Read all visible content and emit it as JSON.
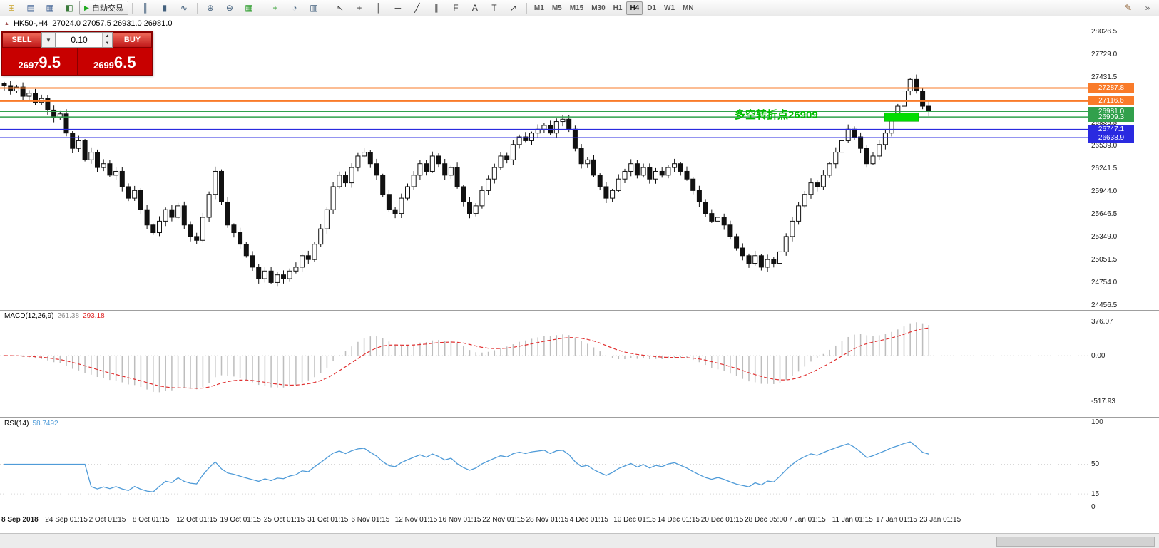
{
  "toolbar": {
    "autotrading_label": "自动交易",
    "groups": [
      {
        "name": "standard",
        "items": [
          {
            "name": "new-order-icon",
            "glyph": "⊞",
            "color": "#c9a227"
          },
          {
            "name": "market-watch-icon",
            "glyph": "▤",
            "color": "#4a6a9a"
          },
          {
            "name": "data-window-icon",
            "glyph": "▦",
            "color": "#4a6a9a"
          },
          {
            "name": "navigator-icon",
            "glyph": "◧",
            "color": "#3a7a3a"
          }
        ]
      },
      {
        "name": "chart-type",
        "items": [
          {
            "name": "bar-chart-icon",
            "glyph": "║",
            "color": "#44617e"
          },
          {
            "name": "candlestick-chart-icon",
            "glyph": "▮",
            "color": "#44617e"
          },
          {
            "name": "line-chart-icon",
            "glyph": "∿",
            "color": "#44617e"
          }
        ]
      },
      {
        "name": "zoom",
        "items": [
          {
            "name": "zoom-in-icon",
            "glyph": "⊕",
            "color": "#44617e"
          },
          {
            "name": "zoom-out-icon",
            "glyph": "⊖",
            "color": "#44617e"
          },
          {
            "name": "tile-windows-icon",
            "glyph": "▦",
            "color": "#2f9e2f"
          }
        ]
      },
      {
        "name": "chart-tools",
        "items": [
          {
            "name": "indicators-icon",
            "glyph": "+",
            "color": "#2f9e2f"
          },
          {
            "name": "periods-icon",
            "glyph": "◔",
            "color": "#44617e"
          },
          {
            "name": "templates-icon",
            "glyph": "▥",
            "color": "#44617e"
          }
        ]
      },
      {
        "name": "draw-tools",
        "items": [
          {
            "name": "cursor-icon",
            "glyph": "↖",
            "color": "#333333"
          },
          {
            "name": "crosshair-icon",
            "glyph": "+",
            "color": "#333333"
          },
          {
            "name": "vertical-line-icon",
            "glyph": "│",
            "color": "#333333"
          },
          {
            "name": "horizontal-line-icon",
            "glyph": "─",
            "color": "#333333"
          },
          {
            "name": "trendline-icon",
            "glyph": "╱",
            "color": "#333333"
          },
          {
            "name": "channel-icon",
            "glyph": "∥",
            "color": "#333333"
          },
          {
            "name": "fibonacci-icon",
            "glyph": "F",
            "color": "#333333"
          },
          {
            "name": "text-icon",
            "glyph": "A",
            "color": "#333333"
          },
          {
            "name": "label-icon",
            "glyph": "T",
            "color": "#333333"
          },
          {
            "name": "arrows-icon",
            "glyph": "↗",
            "color": "#333333"
          }
        ]
      }
    ],
    "timeframes": [
      "M1",
      "M5",
      "M15",
      "M30",
      "H1",
      "H4",
      "D1",
      "W1",
      "MN"
    ],
    "active_timeframe": "H4",
    "right_items": [
      {
        "name": "styles-icon",
        "glyph": "✎",
        "color": "#8a5a2a"
      },
      {
        "name": "toolbar-overflow-icon",
        "glyph": "»",
        "color": "#666666"
      }
    ]
  },
  "trade_panel": {
    "sell_label": "SELL",
    "buy_label": "BUY",
    "volume": "0.10",
    "sell_price": "26979.5",
    "buy_price": "26996.5"
  },
  "chart": {
    "symbol_label": "HK50-,H4",
    "ohlc_text": "27024.0 27057.5 26931.0 26981.0",
    "annotation": "多空转折点26909",
    "lines": [
      {
        "price": 27287.8,
        "label": "27287.8",
        "color": "#f97b2a",
        "width": 2
      },
      {
        "price": 27116.6,
        "label": "27116.6",
        "color": "#f97b2a",
        "width": 2
      },
      {
        "price": 26981.0,
        "label": "26981.0",
        "color": "#31a04c",
        "width": 1
      },
      {
        "price": 26909.3,
        "label": "26909.3",
        "color": "#31a04c",
        "width": 1.5
      },
      {
        "price": 26747.1,
        "label": "26747.1",
        "color": "#2a2ae0",
        "width": 1.5
      },
      {
        "price": 26638.9,
        "label": "26638.9",
        "color": "#2a2ae0",
        "width": 1.5
      }
    ],
    "green_zone": {
      "price_top": 26965,
      "price_bottom": 26852,
      "color": "#00dd00"
    },
    "price_axis": [
      28026.5,
      27729.0,
      27431.5,
      27134.0,
      26836.5,
      26539.0,
      26241.5,
      25944.0,
      25646.5,
      25349.0,
      25051.5,
      24754.0,
      24456.5
    ],
    "time_axis": [
      "8 Sep 2018",
      "24 Sep 01:15",
      "2 Oct 01:15",
      "8 Oct 01:15",
      "12 Oct 01:15",
      "19 Oct 01:15",
      "25 Oct 01:15",
      "31 Oct 01:15",
      "6 Nov 01:15",
      "12 Nov 01:15",
      "16 Nov 01:15",
      "22 Nov 01:15",
      "28 Nov 01:15",
      "4 Dec 01:15",
      "10 Dec 01:15",
      "14 Dec 01:15",
      "20 Dec 01:15",
      "28 Dec 05:00",
      "7 Jan 01:15",
      "11 Jan 01:15",
      "17 Jan 01:15",
      "23 Jan 01:15"
    ]
  },
  "macd": {
    "label": "MACD(12,26,9)",
    "value1": "261.38",
    "value2": "293.18",
    "axis": [
      {
        "label": "376.07",
        "value": 376.07
      },
      {
        "label": "0.00",
        "value": 0
      },
      {
        "label": "-517.93",
        "value": -517.93
      }
    ]
  },
  "rsi": {
    "label": "RSI(14)",
    "value": "58.7492",
    "axis": [
      {
        "label": "100",
        "value": 100
      },
      {
        "label": "50",
        "value": 50
      },
      {
        "label": "15",
        "value": 15
      },
      {
        "label": "0",
        "value": 0
      }
    ],
    "levels": [
      50,
      15
    ]
  },
  "chart_data": [
    {
      "type": "candlestick",
      "symbol": "HK50-",
      "timeframe": "H4",
      "current_ohlc": {
        "open": 27024.0,
        "high": 27057.5,
        "low": 26931.0,
        "close": 26981.0
      },
      "first_open": 27350,
      "closes": [
        27320,
        27250,
        27300,
        27180,
        27220,
        27100,
        27150,
        27000,
        26900,
        26950,
        26700,
        26500,
        26600,
        26350,
        26450,
        26250,
        26300,
        26150,
        26200,
        26000,
        25850,
        25950,
        25700,
        25500,
        25400,
        25550,
        25700,
        25600,
        25750,
        25500,
        25350,
        25300,
        25600,
        25900,
        26200,
        25800,
        25500,
        25400,
        25250,
        25100,
        24950,
        24800,
        24900,
        24750,
        24850,
        24800,
        24900,
        24950,
        25100,
        25050,
        25250,
        25450,
        25700,
        26000,
        26150,
        26050,
        26250,
        26400,
        26450,
        26300,
        26150,
        25900,
        25700,
        25650,
        25850,
        26000,
        26150,
        26300,
        26200,
        26400,
        26300,
        26150,
        26250,
        26000,
        25800,
        25650,
        25750,
        25950,
        26100,
        26250,
        26400,
        26350,
        26550,
        26650,
        26600,
        26700,
        26750,
        26800,
        26700,
        26850,
        26880,
        26750,
        26500,
        26300,
        26350,
        26150,
        26000,
        25850,
        25950,
        26100,
        26200,
        26300,
        26150,
        26250,
        26100,
        26200,
        26150,
        26250,
        26300,
        26200,
        26100,
        25950,
        25800,
        25650,
        25550,
        25600,
        25500,
        25350,
        25200,
        25100,
        25000,
        25100,
        24950,
        25050,
        25000,
        25150,
        25350,
        25550,
        25750,
        25900,
        26050,
        26000,
        26150,
        26300,
        26450,
        26600,
        26750,
        26650,
        26500,
        26300,
        26400,
        26550,
        26700,
        26900,
        27050,
        27250,
        27400,
        27250,
        27050,
        26981
      ],
      "ylim": [
        24456.5,
        28026.5
      ],
      "grid": false
    },
    {
      "type": "bar",
      "name": "MACD(12,26,9)",
      "current_values": [
        261.38,
        293.18
      ],
      "axis_ticks": [
        376.07,
        0.0,
        -517.93
      ],
      "source": "histogram = EMA12-EMA26 of closes; signal = EMA9 of histogram"
    },
    {
      "type": "line",
      "name": "RSI(14)",
      "current_value": 58.7492,
      "axis_ticks": [
        100,
        50,
        15,
        0
      ],
      "source": "RSI(14) of closes"
    }
  ]
}
